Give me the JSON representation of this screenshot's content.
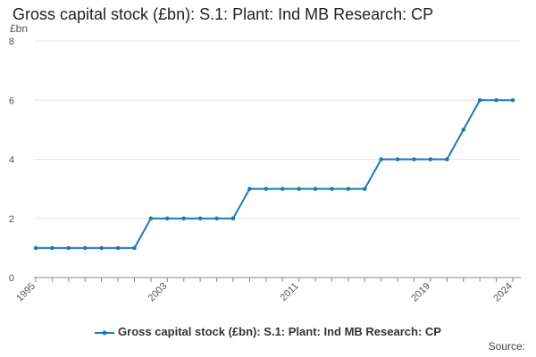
{
  "title": "Gross capital stock (£bn): S.1: Plant: Ind MB Research: CP",
  "source_label": "Source:",
  "colors": {
    "series": "#1f77b4",
    "line": "#1a7ab7",
    "grid": "#e6e6e6",
    "axis": "#888888"
  },
  "chart_data": {
    "type": "line",
    "title": "Gross capital stock (£bn): S.1: Plant: Ind MB Research: CP",
    "ylabel": "£bn",
    "xlabel": "",
    "ylim": [
      0,
      8
    ],
    "yticks": [
      0,
      2,
      4,
      6,
      8
    ],
    "xlim": [
      1995,
      2024
    ],
    "xticks": [
      1995,
      2003,
      2011,
      2019,
      2024
    ],
    "grid": true,
    "legend_position": "bottom",
    "series": [
      {
        "name": "Gross capital stock (£bn): S.1: Plant: Ind MB Research: CP",
        "x": [
          1995,
          1996,
          1997,
          1998,
          1999,
          2000,
          2001,
          2002,
          2003,
          2004,
          2005,
          2006,
          2007,
          2008,
          2009,
          2010,
          2011,
          2012,
          2013,
          2014,
          2015,
          2016,
          2017,
          2018,
          2019,
          2020,
          2021,
          2022,
          2023,
          2024
        ],
        "values": [
          1,
          1,
          1,
          1,
          1,
          1,
          1,
          2,
          2,
          2,
          2,
          2,
          2,
          3,
          3,
          3,
          3,
          3,
          3,
          3,
          3,
          4,
          4,
          4,
          4,
          4,
          5,
          6,
          6,
          6
        ]
      }
    ]
  }
}
